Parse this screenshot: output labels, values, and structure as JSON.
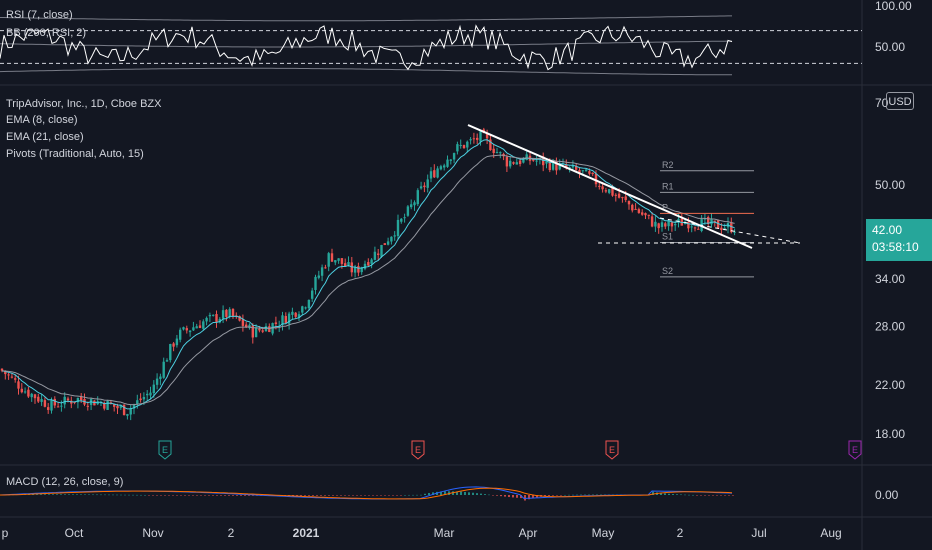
{
  "rsi_panel": {
    "title": "RSI (7, close)",
    "bb_title": "BB (200, RSI, 2)",
    "ticks": [
      "100.00",
      "50.00"
    ]
  },
  "main_panel": {
    "title": "TripAdvisor, Inc., 1D, Cboe BZX",
    "indicators": [
      "EMA (8, close)",
      "EMA (21, close)",
      "Pivots (Traditional, Auto, 15)"
    ],
    "currency": "USD",
    "price_ticks": [
      "70",
      "50.00",
      "34.00",
      "28.00",
      "22.00",
      "18.00"
    ],
    "last_price": "42.00",
    "countdown": "03:58:10",
    "pivot_labels": [
      "R2",
      "R1",
      "P",
      "S1",
      "S2"
    ],
    "earnings_marker": "E"
  },
  "macd_panel": {
    "title": "MACD (12, 26, close, 9)",
    "ticks": [
      "0.00"
    ]
  },
  "time_axis": {
    "labels": [
      "p",
      "Oct",
      "Nov",
      "2",
      "2021",
      "Mar",
      "Apr",
      "May",
      "2",
      "Jul",
      "Aug"
    ]
  },
  "colors": {
    "background": "#131722",
    "up": "#26a69a",
    "down": "#ef5350",
    "text": "#d1d4dc",
    "pivot_p": "#ef6c4f",
    "trendline": "#ffffff",
    "macd_line": "#2962ff",
    "signal_line": "#ff6d00",
    "earnings": "#ef5350",
    "earnings_teal": "#26a69a",
    "earnings_purple": "#9c27b0"
  },
  "chart_data": {
    "type": "candlestick",
    "title": "TripAdvisor, Inc., 1D, Cboe BZX",
    "price_axis_ticks": [
      70,
      50,
      34,
      28,
      22,
      18
    ],
    "price_scale": "log",
    "last_price": 42.0,
    "close_series": {
      "points": [
        [
          "Sep-late",
          23.5
        ],
        [
          "Sep-end",
          21.5
        ],
        [
          "Oct-early",
          20.2
        ],
        [
          "Oct-mid",
          20.8
        ],
        [
          "Oct-late",
          20.5
        ],
        [
          "Nov-start",
          19.8
        ],
        [
          "Nov-early",
          21.5
        ],
        [
          "Nov-mid",
          27.0
        ],
        [
          "Nov-late",
          28.5
        ],
        [
          "Dec-early",
          29.5
        ],
        [
          "Dec-mid",
          27.3
        ],
        [
          "Dec-late",
          28.5
        ],
        [
          "Jan-early",
          30.5
        ],
        [
          "Jan-mid",
          37.5
        ],
        [
          "Jan-late",
          35.0
        ],
        [
          "Feb-early",
          38.5
        ],
        [
          "Feb-mid",
          44.0
        ],
        [
          "Feb-late",
          52.0
        ],
        [
          "Mar-early",
          58.0
        ],
        [
          "Mar-mid",
          61.0
        ],
        [
          "Mar-late",
          55.0
        ],
        [
          "Apr-early",
          55.5
        ],
        [
          "Apr-mid",
          54.0
        ],
        [
          "Apr-late",
          52.5
        ],
        [
          "May-early",
          49.0
        ],
        [
          "May-mid",
          45.5
        ],
        [
          "May-late",
          42.0
        ],
        [
          "Jun-early",
          43.0
        ],
        [
          "Jun-mid",
          42.5
        ],
        [
          "Jun-late",
          42.0
        ]
      ]
    },
    "pivots": {
      "R2": 53.0,
      "R1": 48.5,
      "P": 44.5,
      "S1": 39.5,
      "S2": 34.3
    },
    "rsi_bands": {
      "upper": 70,
      "lower": 30
    }
  }
}
